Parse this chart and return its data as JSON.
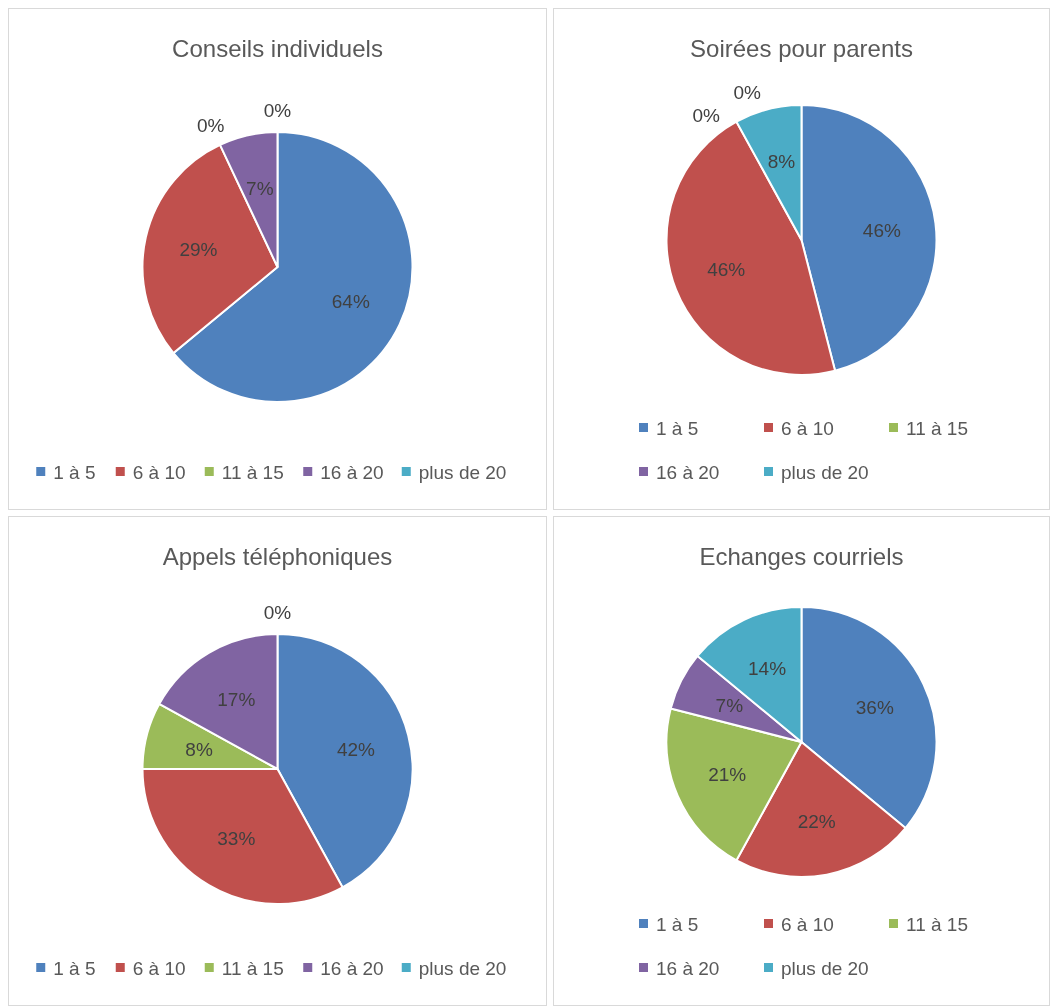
{
  "chart_data": [
    {
      "type": "pie",
      "title": "Conseils individuels",
      "categories": [
        "1 à 5",
        "6 à 10",
        "11 à 15",
        "16 à 20",
        "plus de 20"
      ],
      "values": [
        64,
        29,
        0,
        7,
        0
      ],
      "colors": [
        "#4f81bd",
        "#c0504d",
        "#9bbb59",
        "#8064a2",
        "#4bacc6"
      ],
      "value_labels": [
        "64%",
        "29%",
        "0%",
        "7%",
        "0%"
      ],
      "legend": "bottom"
    },
    {
      "type": "pie",
      "title": "Soirées pour parents",
      "categories": [
        "1 à 5",
        "6 à 10",
        "11 à 15",
        "16 à 20",
        "plus de 20"
      ],
      "values": [
        46,
        46,
        0,
        0,
        8
      ],
      "colors": [
        "#4f81bd",
        "#c0504d",
        "#9bbb59",
        "#8064a2",
        "#4bacc6"
      ],
      "value_labels": [
        "46%",
        "46%",
        "0%",
        "0%",
        "8%"
      ],
      "legend": "bottom"
    },
    {
      "type": "pie",
      "title": "Appels téléphoniques",
      "categories": [
        "1 à 5",
        "6 à 10",
        "11 à 15",
        "16 à 20",
        "plus de 20"
      ],
      "values": [
        42,
        33,
        8,
        17,
        0
      ],
      "colors": [
        "#4f81bd",
        "#c0504d",
        "#9bbb59",
        "#8064a2",
        "#4bacc6"
      ],
      "value_labels": [
        "42%",
        "33%",
        "8%",
        "17%",
        "0%"
      ],
      "legend": "bottom"
    },
    {
      "type": "pie",
      "title": "Echanges courriels",
      "categories": [
        "1 à 5",
        "6 à 10",
        "11 à 15",
        "16 à 20",
        "plus de 20"
      ],
      "values": [
        36,
        22,
        21,
        7,
        14
      ],
      "colors": [
        "#4f81bd",
        "#c0504d",
        "#9bbb59",
        "#8064a2",
        "#4bacc6"
      ],
      "value_labels": [
        "36%",
        "22%",
        "21%",
        "7%",
        "14%"
      ],
      "legend": "bottom"
    }
  ]
}
